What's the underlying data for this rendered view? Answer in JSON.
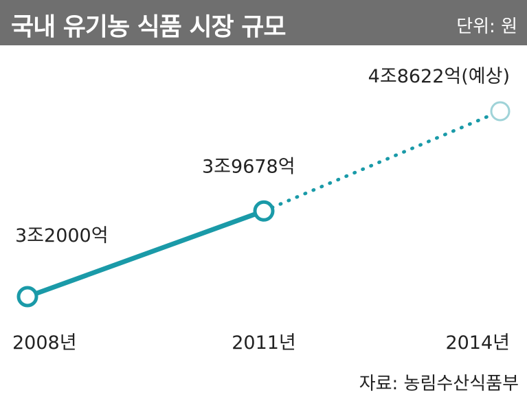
{
  "header": {
    "title": "국내 유기농 식품 시장 규모",
    "unit": "단위: 원"
  },
  "source": "자료: 농림수산식품부",
  "colors": {
    "title_bg": "#6f6f6f",
    "line": "#1a9aa8",
    "forecast_marker": "#9fd3d8",
    "text": "#222222"
  },
  "chart_data": {
    "type": "line",
    "title": "국내 유기농 식품 시장 규모",
    "unit": "단위: 원",
    "x": [
      "2008년",
      "2011년",
      "2014년"
    ],
    "values": [
      32000,
      39678,
      48622
    ],
    "value_unit": "억",
    "data_labels": [
      "3조2000억",
      "3조9678억",
      "4조8622억(예상)"
    ],
    "forecast_from_index": 1,
    "grid": false,
    "legend": "none"
  }
}
